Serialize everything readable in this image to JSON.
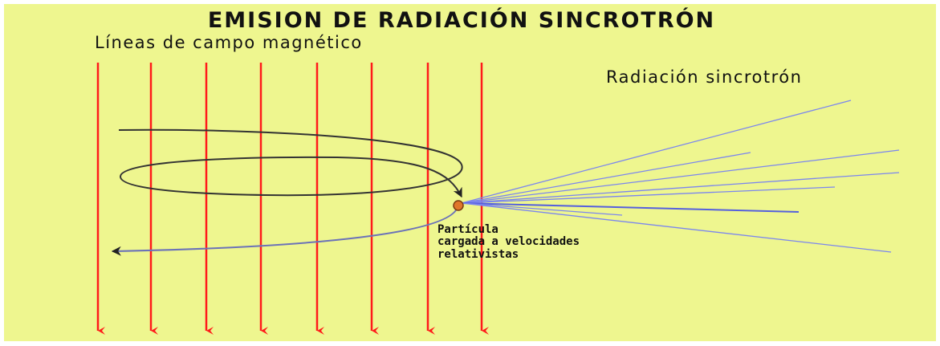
{
  "title": "EMISION DE RADIACIÓN SINCROTRÓN",
  "field_lines_label": "Líneas de campo magnético",
  "radiation_label": "Radiación sincrotrón",
  "particle_label": [
    "Partícula",
    "cargada a velocidades",
    "relativistas"
  ]
}
